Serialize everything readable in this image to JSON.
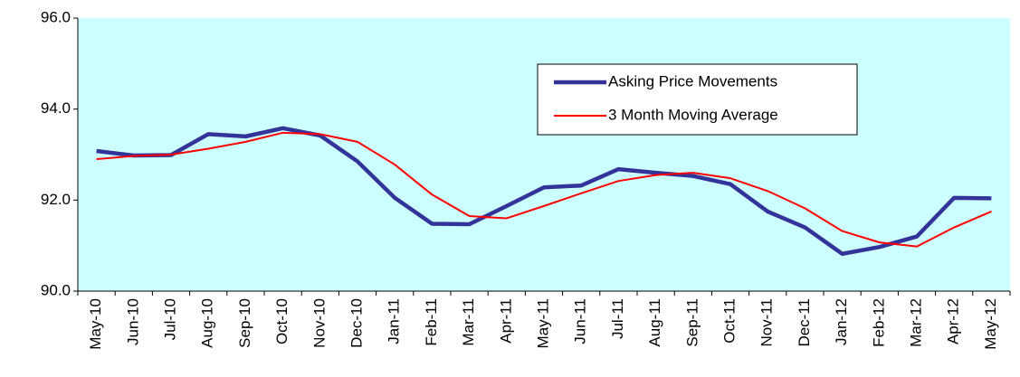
{
  "chart_data": {
    "type": "line",
    "categories": [
      "May-10",
      "Jun-10",
      "Jul-10",
      "Aug-10",
      "Sep-10",
      "Oct-10",
      "Nov-10",
      "Dec-10",
      "Jan-11",
      "Feb-11",
      "Mar-11",
      "Apr-11",
      "May-11",
      "Jun-11",
      "Jul-11",
      "Aug-11",
      "Sep-11",
      "Oct-11",
      "Nov-11",
      "Dec-11",
      "Jan-12",
      "Feb-12",
      "Mar-12",
      "Apr-12",
      "May-12"
    ],
    "series": [
      {
        "name": "Asking Price Movements",
        "color": "#333399",
        "width": 4.5,
        "values": [
          93.08,
          92.98,
          92.99,
          93.45,
          93.4,
          93.58,
          93.42,
          92.85,
          92.05,
          91.48,
          91.47,
          91.87,
          92.28,
          92.32,
          92.68,
          92.6,
          92.53,
          92.35,
          91.75,
          91.4,
          90.82,
          90.97,
          91.2,
          92.05,
          92.04
        ]
      },
      {
        "name": "3 Month Moving Average",
        "color": "#ff0000",
        "width": 2,
        "values": [
          92.9,
          92.97,
          93.0,
          93.13,
          93.28,
          93.48,
          93.45,
          93.28,
          92.78,
          92.12,
          91.65,
          91.6,
          91.87,
          92.15,
          92.42,
          92.55,
          92.6,
          92.48,
          92.2,
          91.82,
          91.32,
          91.07,
          90.98,
          91.4,
          91.75
        ]
      }
    ],
    "ylim": [
      90,
      96
    ],
    "yticks": [
      {
        "value": 90,
        "label": "90.0"
      },
      {
        "value": 92,
        "label": "92.0"
      },
      {
        "value": 94,
        "label": "94.0"
      },
      {
        "value": 96,
        "label": "96.0"
      }
    ],
    "background": "#ccffff"
  }
}
